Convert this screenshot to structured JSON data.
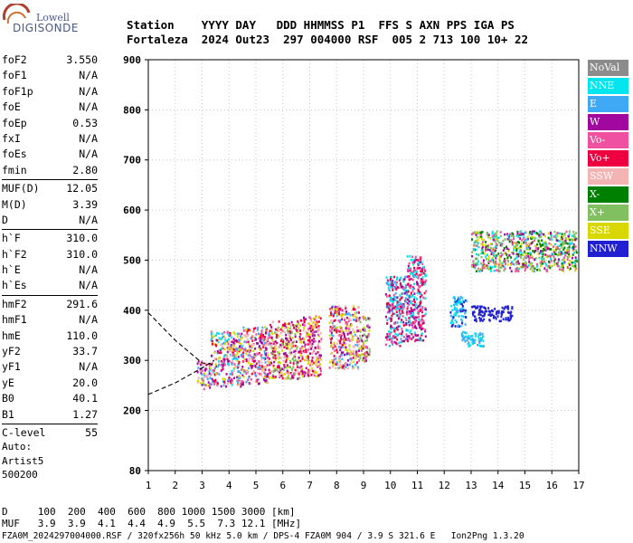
{
  "logo": {
    "line1": "Lowell",
    "line2": "DIGISONDE"
  },
  "header": {
    "line1": "Station    YYYY DAY   DDD HHMMSS P1  FFS S AXN PPS IGA PS",
    "line2": "Fortaleza  2024 Out23  297 004000 RSF  005 2 713 100 10+ 22"
  },
  "params": [
    {
      "group": [
        {
          "k": "foF2",
          "v": "3.550"
        },
        {
          "k": "foF1",
          "v": "N/A"
        },
        {
          "k": "foF1p",
          "v": "N/A"
        },
        {
          "k": "foE",
          "v": "N/A"
        },
        {
          "k": "foEp",
          "v": "0.53"
        },
        {
          "k": "fxI",
          "v": "N/A"
        },
        {
          "k": "foEs",
          "v": "N/A"
        },
        {
          "k": "fmin",
          "v": "2.80"
        }
      ]
    },
    {
      "group": [
        {
          "k": "MUF(D)",
          "v": "12.05"
        },
        {
          "k": "M(D)",
          "v": "3.39"
        },
        {
          "k": "D",
          "v": "N/A"
        }
      ]
    },
    {
      "group": [
        {
          "k": "h`F",
          "v": "310.0"
        },
        {
          "k": "h`F2",
          "v": "310.0"
        },
        {
          "k": "h`E",
          "v": "N/A"
        },
        {
          "k": "h`Es",
          "v": "N/A"
        }
      ]
    },
    {
      "group": [
        {
          "k": "hmF2",
          "v": "291.6"
        },
        {
          "k": "hmF1",
          "v": "N/A"
        },
        {
          "k": "hmE",
          "v": "110.0"
        },
        {
          "k": "yF2",
          "v": "33.7"
        },
        {
          "k": "yF1",
          "v": "N/A"
        },
        {
          "k": "yE",
          "v": "20.0"
        },
        {
          "k": "B0",
          "v": "40.1"
        },
        {
          "k": "B1",
          "v": "1.27"
        }
      ]
    },
    {
      "group": [
        {
          "k": "C-level",
          "v": "55"
        }
      ]
    }
  ],
  "auto": {
    "line1": "Auto:",
    "line2": "Artist5",
    "line3": "500200"
  },
  "legend": [
    {
      "label": "NoVal",
      "color": "#8c8c8c"
    },
    {
      "label": "NNE",
      "color": "#00e5ee"
    },
    {
      "label": "E",
      "color": "#3fa9f5"
    },
    {
      "label": "W",
      "color": "#a0089e"
    },
    {
      "label": "Vo-",
      "color": "#f050a0"
    },
    {
      "label": "Vo+",
      "color": "#ee0040"
    },
    {
      "label": "SSW",
      "color": "#f5b4b4"
    },
    {
      "label": "X-",
      "color": "#008000"
    },
    {
      "label": "X+",
      "color": "#80c060"
    },
    {
      "label": "SSE",
      "color": "#d8d800"
    },
    {
      "label": "NNW",
      "color": "#2020d0"
    }
  ],
  "bottom": {
    "line1": "D     100  200  400  600  800 1000 1500 3000 [km]",
    "line2": "MUF   3.9  3.9  4.1  4.4  4.9  5.5  7.3 12.1 [MHz]"
  },
  "footer": "FZA0M_2024297004000.RSF / 320fx256h 50 kHz 5.0 km / DPS-4 FZA0M 904 / 3.9 S 321.6 E   Ion2Png 1.3.20",
  "chart_data": {
    "type": "scatter",
    "xlabel": "",
    "ylabel": "",
    "xlim": [
      1,
      17
    ],
    "ylim": [
      80,
      900
    ],
    "xticks": [
      1,
      2,
      3,
      4,
      5,
      6,
      7,
      8,
      9,
      10,
      11,
      12,
      13,
      14,
      15,
      16,
      17
    ],
    "yticks": [
      80,
      200,
      300,
      400,
      500,
      600,
      700,
      800,
      900
    ],
    "grid": true,
    "legend_position": "right",
    "echo_clusters": [
      {
        "x": [
          2.8,
          3.3
        ],
        "y": [
          245,
          300
        ],
        "colors": [
          "#f5b4b4",
          "#a0089e",
          "#d8d800",
          "#3fa9f5",
          "#f050a0"
        ]
      },
      {
        "x": [
          3.3,
          4.5
        ],
        "y": [
          250,
          360
        ],
        "colors": [
          "#a0089e",
          "#f050a0",
          "#ee0040",
          "#f5b4b4",
          "#3fa9f5",
          "#d8d800",
          "#00e5ee"
        ]
      },
      {
        "x": [
          4.5,
          5.5
        ],
        "y": [
          255,
          370
        ],
        "colors": [
          "#a0089e",
          "#f050a0",
          "#ee0040",
          "#d8d800",
          "#f5b4b4",
          "#3fa9f5"
        ]
      },
      {
        "x": [
          5.5,
          6.6
        ],
        "y": [
          265,
          380
        ],
        "colors": [
          "#a0089e",
          "#ee0040",
          "#d8d800",
          "#f5b4b4",
          "#80c060"
        ]
      },
      {
        "x": [
          6.6,
          7.4
        ],
        "y": [
          270,
          390
        ],
        "colors": [
          "#a0089e",
          "#ee0040",
          "#f050a0",
          "#f5b4b4",
          "#d8d800"
        ]
      },
      {
        "x": [
          7.7,
          8.8
        ],
        "y": [
          285,
          410
        ],
        "colors": [
          "#a0089e",
          "#ee0040",
          "#f050a0",
          "#d8d800",
          "#f5b4b4",
          "#3fa9f5"
        ]
      },
      {
        "x": [
          8.8,
          9.2
        ],
        "y": [
          300,
          390
        ],
        "colors": [
          "#a0089e",
          "#f050a0",
          "#d8d800",
          "#80c060"
        ]
      },
      {
        "x": [
          9.8,
          10.6
        ],
        "y": [
          330,
          470
        ],
        "colors": [
          "#f050a0",
          "#ee0040",
          "#a0089e",
          "#3fa9f5",
          "#00e5ee"
        ]
      },
      {
        "x": [
          10.6,
          11.3
        ],
        "y": [
          340,
          510
        ],
        "colors": [
          "#f050a0",
          "#a0089e",
          "#00e5ee",
          "#ee0040"
        ]
      },
      {
        "x": [
          12.2,
          12.8
        ],
        "y": [
          370,
          430
        ],
        "colors": [
          "#2020d0",
          "#3fa9f5",
          "#00e5ee"
        ]
      },
      {
        "x": [
          13.0,
          14.5
        ],
        "y": [
          380,
          410
        ],
        "colors": [
          "#2020d0"
        ]
      },
      {
        "x": [
          12.6,
          13.5
        ],
        "y": [
          330,
          360
        ],
        "colors": [
          "#00e5ee",
          "#3fa9f5"
        ]
      },
      {
        "x": [
          13.0,
          16.9
        ],
        "y": [
          480,
          560
        ],
        "colors": [
          "#008000",
          "#80c060",
          "#d8d800",
          "#a0089e",
          "#00e5ee",
          "#f050a0"
        ]
      }
    ],
    "profile_curves": [
      {
        "name": "",
        "points": [
          [
            1,
            395
          ],
          [
            2,
            340
          ],
          [
            3,
            295
          ],
          [
            3.45,
            292
          ]
        ]
      },
      {
        "name": "",
        "points": [
          [
            1,
            232
          ],
          [
            2,
            255
          ],
          [
            3,
            285
          ],
          [
            3.45,
            300
          ]
        ]
      }
    ]
  }
}
